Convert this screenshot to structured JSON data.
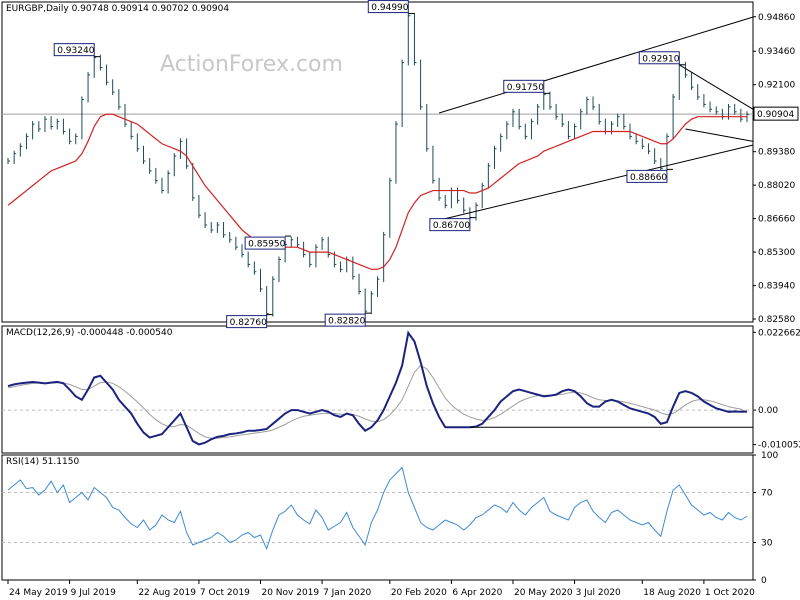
{
  "header": {
    "symbol_line": "EURGBP,Daily  0.90748 0.90914 0.90702 0.90904"
  },
  "watermark": "ActionForex.com",
  "colors": {
    "price": "#1a4a5a",
    "ma": "#d42020",
    "macd": "#1a237e",
    "signal": "#9e9e9e",
    "rsi": "#3d8bd4",
    "channel": "#000000",
    "grid": "#bdbdbd",
    "label_border": "#1a237e"
  },
  "chart_data": [
    {
      "type": "line",
      "title": "EURGBP,Daily",
      "ohlc_last": {
        "open": 0.90748,
        "high": 0.90914,
        "low": 0.90702,
        "close": 0.90904
      },
      "x_ticks": [
        "24 May 2019",
        "9 Jul 2019",
        "22 Aug 2019",
        "7 Oct 2019",
        "20 Nov 2019",
        "7 Jan 2020",
        "20 Feb 2020",
        "6 Apr 2020",
        "20 May 2020",
        "3 Jul 2020",
        "18 Aug 2020",
        "1 Oct 2020"
      ],
      "y_ticks": [
        "0.94860",
        "0.93460",
        "0.92100",
        "0.90904",
        "0.89380",
        "0.88020",
        "0.86660",
        "0.85300",
        "0.83940",
        "0.82580"
      ],
      "ylim": [
        0.8246,
        0.9546
      ],
      "current_price_label": "0.90904",
      "series": [
        {
          "name": "price",
          "values": [
            0.89,
            0.893,
            0.896,
            0.9,
            0.905,
            0.903,
            0.907,
            0.904,
            0.906,
            0.902,
            0.898,
            0.9,
            0.915,
            0.925,
            0.932,
            0.928,
            0.922,
            0.918,
            0.912,
            0.905,
            0.9,
            0.895,
            0.89,
            0.886,
            0.882,
            0.878,
            0.885,
            0.892,
            0.898,
            0.888,
            0.875,
            0.868,
            0.864,
            0.862,
            0.864,
            0.86,
            0.858,
            0.855,
            0.852,
            0.848,
            0.845,
            0.838,
            0.828,
            0.842,
            0.85,
            0.856,
            0.858,
            0.856,
            0.852,
            0.848,
            0.855,
            0.858,
            0.852,
            0.848,
            0.846,
            0.85,
            0.843,
            0.837,
            0.829,
            0.836,
            0.842,
            0.86,
            0.882,
            0.905,
            0.93,
            0.949,
            0.93,
            0.912,
            0.895,
            0.882,
            0.875,
            0.872,
            0.878,
            0.874,
            0.87,
            0.867,
            0.872,
            0.88,
            0.888,
            0.895,
            0.9,
            0.905,
            0.91,
            0.904,
            0.9,
            0.906,
            0.912,
            0.917,
            0.912,
            0.908,
            0.905,
            0.9,
            0.904,
            0.91,
            0.915,
            0.912,
            0.906,
            0.902,
            0.905,
            0.908,
            0.904,
            0.9,
            0.898,
            0.896,
            0.894,
            0.89,
            0.887,
            0.9,
            0.916,
            0.929,
            0.925,
            0.92,
            0.916,
            0.913,
            0.911,
            0.91,
            0.908,
            0.912,
            0.91,
            0.907,
            0.909
          ]
        },
        {
          "name": "ma",
          "values": [
            0.872,
            0.874,
            0.876,
            0.878,
            0.88,
            0.882,
            0.884,
            0.886,
            0.887,
            0.888,
            0.889,
            0.89,
            0.893,
            0.898,
            0.904,
            0.908,
            0.909,
            0.909,
            0.908,
            0.907,
            0.906,
            0.905,
            0.903,
            0.901,
            0.899,
            0.897,
            0.896,
            0.895,
            0.894,
            0.892,
            0.888,
            0.884,
            0.88,
            0.877,
            0.874,
            0.871,
            0.868,
            0.865,
            0.862,
            0.86,
            0.858,
            0.856,
            0.855,
            0.855,
            0.855,
            0.855,
            0.855,
            0.855,
            0.854,
            0.853,
            0.853,
            0.853,
            0.853,
            0.852,
            0.851,
            0.85,
            0.849,
            0.848,
            0.847,
            0.846,
            0.846,
            0.847,
            0.85,
            0.855,
            0.862,
            0.869,
            0.873,
            0.876,
            0.877,
            0.878,
            0.878,
            0.878,
            0.878,
            0.878,
            0.878,
            0.877,
            0.877,
            0.878,
            0.879,
            0.881,
            0.883,
            0.885,
            0.887,
            0.889,
            0.89,
            0.891,
            0.892,
            0.894,
            0.895,
            0.896,
            0.897,
            0.898,
            0.899,
            0.9,
            0.901,
            0.902,
            0.902,
            0.902,
            0.902,
            0.902,
            0.902,
            0.902,
            0.901,
            0.9,
            0.899,
            0.898,
            0.897,
            0.897,
            0.899,
            0.902,
            0.905,
            0.907,
            0.908,
            0.908,
            0.908,
            0.908,
            0.908,
            0.908,
            0.908,
            0.908,
            0.908
          ]
        }
      ],
      "annotations": [
        {
          "label": "0.93240",
          "x_index": 14,
          "value": 0.9324
        },
        {
          "label": "0.94990",
          "x_index": 65,
          "value": 0.9499
        },
        {
          "label": "0.82760",
          "x_index": 42,
          "value": 0.8276
        },
        {
          "label": "0.85950",
          "x_index": 45,
          "value": 0.8595
        },
        {
          "label": "0.82820",
          "x_index": 58,
          "value": 0.8282
        },
        {
          "label": "0.86700",
          "x_index": 75,
          "value": 0.867
        },
        {
          "label": "0.91750",
          "x_index": 87,
          "value": 0.9175
        },
        {
          "label": "0.92910",
          "x_index": 109,
          "value": 0.9291
        },
        {
          "label": "0.88660",
          "x_index": 107,
          "value": 0.8866
        }
      ],
      "trendlines": [
        {
          "name": "upper-channel",
          "x": [
            70,
            121
          ],
          "y": [
            0.9095,
            0.9485
          ]
        },
        {
          "name": "lower-channel",
          "x": [
            70,
            121
          ],
          "y": [
            0.866,
            0.8965
          ]
        },
        {
          "name": "triangle-upper",
          "x": [
            109,
            121
          ],
          "y": [
            0.9291,
            0.911
          ]
        },
        {
          "name": "triangle-lower",
          "x": [
            110,
            121
          ],
          "y": [
            0.903,
            0.898
          ]
        }
      ]
    },
    {
      "type": "line",
      "title": "MACD(12,26,9) -0.000448 -0.000540",
      "y_ticks": [
        "0.022662",
        "0.00",
        "-0.010052"
      ],
      "ylim": [
        -0.0125,
        0.0245
      ],
      "series": [
        {
          "name": "macd",
          "values": [
            0.007,
            0.0075,
            0.0078,
            0.008,
            0.0082,
            0.008,
            0.0078,
            0.008,
            0.0082,
            0.0078,
            0.006,
            0.004,
            0.003,
            0.006,
            0.0095,
            0.01,
            0.008,
            0.006,
            0.003,
            0.001,
            -0.001,
            -0.004,
            -0.0065,
            -0.008,
            -0.0075,
            -0.007,
            -0.005,
            -0.003,
            -0.001,
            -0.005,
            -0.009,
            -0.01,
            -0.0095,
            -0.0085,
            -0.0078,
            -0.0075,
            -0.007,
            -0.0068,
            -0.0065,
            -0.006,
            -0.006,
            -0.0058,
            -0.0055,
            -0.004,
            -0.0025,
            -0.001,
            0.0,
            0.0,
            -0.0005,
            -0.001,
            -0.0005,
            0.0,
            -0.0005,
            -0.0015,
            -0.002,
            -0.001,
            -0.0015,
            -0.004,
            -0.006,
            -0.005,
            -0.003,
            0.0,
            0.004,
            0.008,
            0.013,
            0.0225,
            0.02,
            0.014,
            0.007,
            0.002,
            -0.002,
            -0.005,
            -0.005,
            -0.005,
            -0.005,
            -0.005,
            -0.0048,
            -0.004,
            -0.002,
            0.0,
            0.0025,
            0.004,
            0.0055,
            0.006,
            0.0055,
            0.005,
            0.0045,
            0.004,
            0.0042,
            0.0045,
            0.0055,
            0.006,
            0.0055,
            0.004,
            0.002,
            0.001,
            0.001,
            0.0025,
            0.003,
            0.0025,
            0.0015,
            0.0005,
            0.0,
            -0.0005,
            -0.001,
            -0.002,
            -0.004,
            -0.0035,
            0.001,
            0.005,
            0.0055,
            0.005,
            0.004,
            0.0025,
            0.0015,
            0.0005,
            0.0,
            -0.0005,
            -0.0004,
            -0.0005,
            -0.00045
          ]
        },
        {
          "name": "signal",
          "values": [
            0.0065,
            0.0068,
            0.0072,
            0.0075,
            0.0078,
            0.0079,
            0.0079,
            0.0079,
            0.008,
            0.0079,
            0.0075,
            0.0068,
            0.006,
            0.006,
            0.007,
            0.008,
            0.0082,
            0.0078,
            0.0068,
            0.0055,
            0.004,
            0.0024,
            0.0006,
            -0.0012,
            -0.0028,
            -0.004,
            -0.0048,
            -0.0048,
            -0.0042,
            -0.0044,
            -0.0056,
            -0.0068,
            -0.0078,
            -0.0082,
            -0.0082,
            -0.008,
            -0.0078,
            -0.0075,
            -0.0072,
            -0.007,
            -0.0067,
            -0.0065,
            -0.0062,
            -0.0058,
            -0.005,
            -0.0042,
            -0.0032,
            -0.0024,
            -0.0018,
            -0.0015,
            -0.0012,
            -0.001,
            -0.0009,
            -0.001,
            -0.0012,
            -0.0012,
            -0.0013,
            -0.0018,
            -0.0026,
            -0.0032,
            -0.0034,
            -0.0028,
            -0.0014,
            0.0005,
            0.003,
            0.007,
            0.011,
            0.013,
            0.012,
            0.0095,
            0.0065,
            0.0035,
            0.0015,
            0.0,
            -0.0012,
            -0.002,
            -0.0026,
            -0.003,
            -0.0028,
            -0.0022,
            -0.0012,
            0.0,
            0.0012,
            0.0024,
            0.0032,
            0.0038,
            0.0042,
            0.0043,
            0.0043,
            0.0044,
            0.0046,
            0.005,
            0.0052,
            0.005,
            0.0044,
            0.0036,
            0.003,
            0.0028,
            0.0028,
            0.0027,
            0.0024,
            0.002,
            0.0015,
            0.001,
            0.0005,
            0.0,
            -0.0008,
            -0.0014,
            -0.001,
            0.0002,
            0.0015,
            0.0025,
            0.003,
            0.003,
            0.0027,
            0.0022,
            0.0016,
            0.001,
            0.0006,
            0.0003,
            -0.00054
          ]
        }
      ],
      "trendlines": [
        {
          "name": "macd-support",
          "x": [
            75,
            121
          ],
          "y": [
            -0.005,
            -0.005
          ]
        }
      ]
    },
    {
      "type": "line",
      "title": "RSI(14) 51.1150",
      "y_ticks": [
        "100",
        "70",
        "30",
        "0"
      ],
      "ylim": [
        0,
        100
      ],
      "series": [
        {
          "name": "rsi",
          "values": [
            72,
            76,
            80,
            73,
            74,
            68,
            72,
            79,
            70,
            76,
            62,
            66,
            70,
            64,
            74,
            70,
            66,
            58,
            56,
            50,
            45,
            42,
            48,
            40,
            44,
            52,
            48,
            46,
            55,
            38,
            28,
            30,
            32,
            34,
            38,
            35,
            30,
            32,
            36,
            38,
            34,
            36,
            25,
            40,
            52,
            55,
            60,
            52,
            48,
            45,
            56,
            50,
            40,
            43,
            46,
            54,
            42,
            35,
            28,
            46,
            56,
            70,
            80,
            85,
            90,
            70,
            58,
            46,
            42,
            40,
            44,
            48,
            46,
            44,
            40,
            44,
            50,
            52,
            56,
            60,
            58,
            54,
            62,
            56,
            52,
            58,
            62,
            66,
            55,
            52,
            50,
            48,
            58,
            62,
            64,
            55,
            50,
            46,
            54,
            56,
            52,
            48,
            46,
            44,
            46,
            40,
            35,
            55,
            72,
            76,
            68,
            60,
            56,
            52,
            54,
            50,
            48,
            54,
            50,
            48,
            51
          ]
        }
      ],
      "levels": [
        70,
        30
      ]
    }
  ]
}
